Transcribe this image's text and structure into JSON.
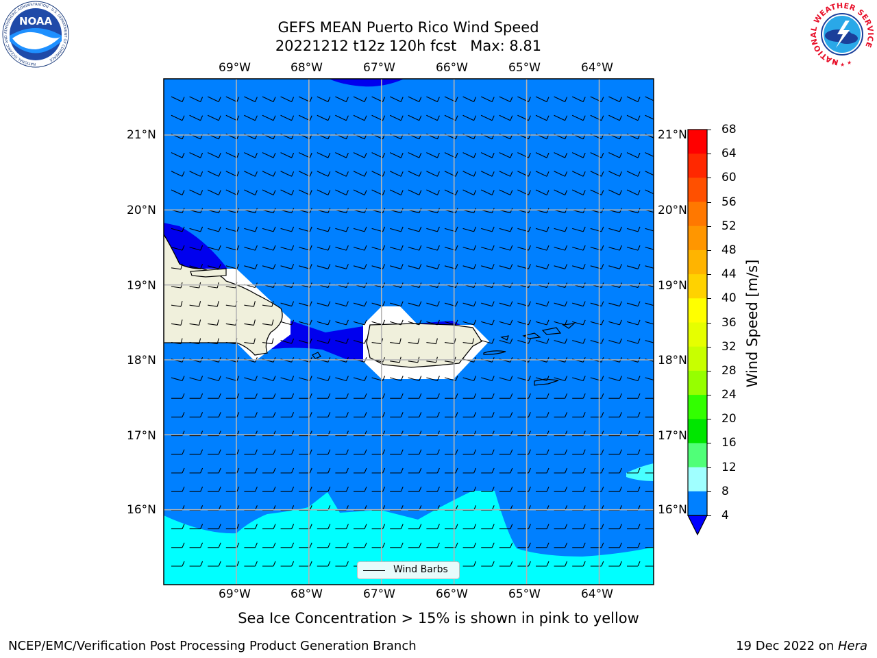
{
  "title_line1": "GEFS MEAN Puerto Rico Wind Speed",
  "title_line2": "20221212 t12z 120h fcst   Max: 8.81",
  "subtitle": "Sea Ice Concentration > 15% is shown in pink to yellow",
  "footer_left": "NCEP/EMC/Verification Post Processing Product Generation Branch",
  "footer_right_prefix": "19 Dec 2022 on ",
  "footer_right_host": "Hera",
  "legend_label": "Wind Barbs",
  "logos": {
    "noaa": {
      "name": "noaa-logo",
      "text": "NOAA",
      "ring_text": "NATIONAL OCEANIC AND ATMOSPHERIC ADMINISTRATION · U.S. DEPARTMENT OF COMMERCE"
    },
    "nws": {
      "name": "nws-logo",
      "ring_text": "NATIONAL WEATHER SERVICE"
    }
  },
  "map": {
    "lon_labels": [
      "69°W",
      "68°W",
      "67°W",
      "66°W",
      "65°W",
      "64°W"
    ],
    "lat_labels": [
      "21°N",
      "20°N",
      "19°N",
      "18°N",
      "17°N",
      "16°N"
    ],
    "lon_range": [
      -70,
      -63.25
    ],
    "lat_range": [
      15,
      21.75
    ],
    "colors": {
      "ocean_4_8": "#0080ff",
      "low_below_4": "#0000ee",
      "band_8_12": "#00ffff",
      "band_12_16": "#48ffff",
      "land": "#f0f0dc",
      "coast": "#000000"
    },
    "grid": true
  },
  "colorbar": {
    "label": "Wind Speed [m/s]",
    "ticks": [
      "68",
      "64",
      "60",
      "56",
      "52",
      "48",
      "44",
      "40",
      "36",
      "32",
      "28",
      "24",
      "20",
      "16",
      "12",
      "8",
      "4"
    ],
    "colors": [
      "#ff0000",
      "#ff2800",
      "#ff5000",
      "#ff7800",
      "#ff9600",
      "#ffb400",
      "#ffd200",
      "#ffff00",
      "#e6ff00",
      "#c8ff00",
      "#96ff00",
      "#32ff00",
      "#00e600",
      "#50ff78",
      "#a0ffff",
      "#50ffff",
      "#00ffff",
      "#0080ff"
    ],
    "extend_color": "#0000ff"
  },
  "chart_data": {
    "type": "heatmap",
    "title": "GEFS MEAN Puerto Rico Wind Speed",
    "subtitle": "20221212 t12z 120h fcst   Max: 8.81",
    "variable": "Wind Speed [m/s]",
    "max": 8.81,
    "levels": [
      4,
      8,
      12,
      16,
      20,
      24,
      28,
      32,
      36,
      40,
      44,
      48,
      52,
      56,
      60,
      64,
      68
    ],
    "xlim": [
      -70,
      -63.25
    ],
    "ylim": [
      15,
      21.75
    ],
    "x_ticks": [
      "69°W",
      "68°W",
      "67°W",
      "66°W",
      "65°W",
      "64°W"
    ],
    "y_ticks": [
      "21°N",
      "20°N",
      "19°N",
      "18°N",
      "17°N",
      "16°N"
    ],
    "grid": true,
    "legend": {
      "position": "bottom-center",
      "entries": [
        "Wind Barbs"
      ]
    },
    "regions": [
      {
        "range_ms": "4-8",
        "area": "most of the domain"
      },
      {
        "range_ms": "<4",
        "area": "north of Hispaniola, Mona Passage, top edge near 67°W"
      },
      {
        "range_ms": "8-12",
        "area": "south of 16°N"
      }
    ]
  }
}
